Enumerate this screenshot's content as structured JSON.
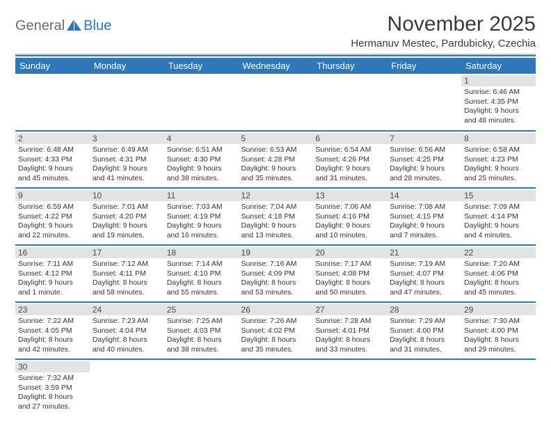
{
  "logo": {
    "text1": "General",
    "text2": "Blue"
  },
  "header": {
    "title": "November 2025",
    "subtitle": "Hermanuv Mestec, Pardubicky, Czechia"
  },
  "colors": {
    "accent": "#2e77b8",
    "header_text": "#ffffff",
    "daybar_bg": "#e3e3e3",
    "body_text": "#333333",
    "logo_gray": "#6c6c6c"
  },
  "weekdays": [
    "Sunday",
    "Monday",
    "Tuesday",
    "Wednesday",
    "Thursday",
    "Friday",
    "Saturday"
  ],
  "weeks": [
    [
      {
        "day": "",
        "sunrise": "",
        "sunset": "",
        "daylight1": "",
        "daylight2": ""
      },
      {
        "day": "",
        "sunrise": "",
        "sunset": "",
        "daylight1": "",
        "daylight2": ""
      },
      {
        "day": "",
        "sunrise": "",
        "sunset": "",
        "daylight1": "",
        "daylight2": ""
      },
      {
        "day": "",
        "sunrise": "",
        "sunset": "",
        "daylight1": "",
        "daylight2": ""
      },
      {
        "day": "",
        "sunrise": "",
        "sunset": "",
        "daylight1": "",
        "daylight2": ""
      },
      {
        "day": "",
        "sunrise": "",
        "sunset": "",
        "daylight1": "",
        "daylight2": ""
      },
      {
        "day": "1",
        "sunrise": "Sunrise: 6:46 AM",
        "sunset": "Sunset: 4:35 PM",
        "daylight1": "Daylight: 9 hours",
        "daylight2": "and 48 minutes."
      }
    ],
    [
      {
        "day": "2",
        "sunrise": "Sunrise: 6:48 AM",
        "sunset": "Sunset: 4:33 PM",
        "daylight1": "Daylight: 9 hours",
        "daylight2": "and 45 minutes."
      },
      {
        "day": "3",
        "sunrise": "Sunrise: 6:49 AM",
        "sunset": "Sunset: 4:31 PM",
        "daylight1": "Daylight: 9 hours",
        "daylight2": "and 41 minutes."
      },
      {
        "day": "4",
        "sunrise": "Sunrise: 6:51 AM",
        "sunset": "Sunset: 4:30 PM",
        "daylight1": "Daylight: 9 hours",
        "daylight2": "and 38 minutes."
      },
      {
        "day": "5",
        "sunrise": "Sunrise: 6:53 AM",
        "sunset": "Sunset: 4:28 PM",
        "daylight1": "Daylight: 9 hours",
        "daylight2": "and 35 minutes."
      },
      {
        "day": "6",
        "sunrise": "Sunrise: 6:54 AM",
        "sunset": "Sunset: 4:26 PM",
        "daylight1": "Daylight: 9 hours",
        "daylight2": "and 31 minutes."
      },
      {
        "day": "7",
        "sunrise": "Sunrise: 6:56 AM",
        "sunset": "Sunset: 4:25 PM",
        "daylight1": "Daylight: 9 hours",
        "daylight2": "and 28 minutes."
      },
      {
        "day": "8",
        "sunrise": "Sunrise: 6:58 AM",
        "sunset": "Sunset: 4:23 PM",
        "daylight1": "Daylight: 9 hours",
        "daylight2": "and 25 minutes."
      }
    ],
    [
      {
        "day": "9",
        "sunrise": "Sunrise: 6:59 AM",
        "sunset": "Sunset: 4:22 PM",
        "daylight1": "Daylight: 9 hours",
        "daylight2": "and 22 minutes."
      },
      {
        "day": "10",
        "sunrise": "Sunrise: 7:01 AM",
        "sunset": "Sunset: 4:20 PM",
        "daylight1": "Daylight: 9 hours",
        "daylight2": "and 19 minutes."
      },
      {
        "day": "11",
        "sunrise": "Sunrise: 7:03 AM",
        "sunset": "Sunset: 4:19 PM",
        "daylight1": "Daylight: 9 hours",
        "daylight2": "and 16 minutes."
      },
      {
        "day": "12",
        "sunrise": "Sunrise: 7:04 AM",
        "sunset": "Sunset: 4:18 PM",
        "daylight1": "Daylight: 9 hours",
        "daylight2": "and 13 minutes."
      },
      {
        "day": "13",
        "sunrise": "Sunrise: 7:06 AM",
        "sunset": "Sunset: 4:16 PM",
        "daylight1": "Daylight: 9 hours",
        "daylight2": "and 10 minutes."
      },
      {
        "day": "14",
        "sunrise": "Sunrise: 7:08 AM",
        "sunset": "Sunset: 4:15 PM",
        "daylight1": "Daylight: 9 hours",
        "daylight2": "and 7 minutes."
      },
      {
        "day": "15",
        "sunrise": "Sunrise: 7:09 AM",
        "sunset": "Sunset: 4:14 PM",
        "daylight1": "Daylight: 9 hours",
        "daylight2": "and 4 minutes."
      }
    ],
    [
      {
        "day": "16",
        "sunrise": "Sunrise: 7:11 AM",
        "sunset": "Sunset: 4:12 PM",
        "daylight1": "Daylight: 9 hours",
        "daylight2": "and 1 minute."
      },
      {
        "day": "17",
        "sunrise": "Sunrise: 7:12 AM",
        "sunset": "Sunset: 4:11 PM",
        "daylight1": "Daylight: 8 hours",
        "daylight2": "and 58 minutes."
      },
      {
        "day": "18",
        "sunrise": "Sunrise: 7:14 AM",
        "sunset": "Sunset: 4:10 PM",
        "daylight1": "Daylight: 8 hours",
        "daylight2": "and 55 minutes."
      },
      {
        "day": "19",
        "sunrise": "Sunrise: 7:16 AM",
        "sunset": "Sunset: 4:09 PM",
        "daylight1": "Daylight: 8 hours",
        "daylight2": "and 53 minutes."
      },
      {
        "day": "20",
        "sunrise": "Sunrise: 7:17 AM",
        "sunset": "Sunset: 4:08 PM",
        "daylight1": "Daylight: 8 hours",
        "daylight2": "and 50 minutes."
      },
      {
        "day": "21",
        "sunrise": "Sunrise: 7:19 AM",
        "sunset": "Sunset: 4:07 PM",
        "daylight1": "Daylight: 8 hours",
        "daylight2": "and 47 minutes."
      },
      {
        "day": "22",
        "sunrise": "Sunrise: 7:20 AM",
        "sunset": "Sunset: 4:06 PM",
        "daylight1": "Daylight: 8 hours",
        "daylight2": "and 45 minutes."
      }
    ],
    [
      {
        "day": "23",
        "sunrise": "Sunrise: 7:22 AM",
        "sunset": "Sunset: 4:05 PM",
        "daylight1": "Daylight: 8 hours",
        "daylight2": "and 42 minutes."
      },
      {
        "day": "24",
        "sunrise": "Sunrise: 7:23 AM",
        "sunset": "Sunset: 4:04 PM",
        "daylight1": "Daylight: 8 hours",
        "daylight2": "and 40 minutes."
      },
      {
        "day": "25",
        "sunrise": "Sunrise: 7:25 AM",
        "sunset": "Sunset: 4:03 PM",
        "daylight1": "Daylight: 8 hours",
        "daylight2": "and 38 minutes."
      },
      {
        "day": "26",
        "sunrise": "Sunrise: 7:26 AM",
        "sunset": "Sunset: 4:02 PM",
        "daylight1": "Daylight: 8 hours",
        "daylight2": "and 35 minutes."
      },
      {
        "day": "27",
        "sunrise": "Sunrise: 7:28 AM",
        "sunset": "Sunset: 4:01 PM",
        "daylight1": "Daylight: 8 hours",
        "daylight2": "and 33 minutes."
      },
      {
        "day": "28",
        "sunrise": "Sunrise: 7:29 AM",
        "sunset": "Sunset: 4:00 PM",
        "daylight1": "Daylight: 8 hours",
        "daylight2": "and 31 minutes."
      },
      {
        "day": "29",
        "sunrise": "Sunrise: 7:30 AM",
        "sunset": "Sunset: 4:00 PM",
        "daylight1": "Daylight: 8 hours",
        "daylight2": "and 29 minutes."
      }
    ],
    [
      {
        "day": "30",
        "sunrise": "Sunrise: 7:32 AM",
        "sunset": "Sunset: 3:59 PM",
        "daylight1": "Daylight: 8 hours",
        "daylight2": "and 27 minutes."
      },
      {
        "day": "",
        "sunrise": "",
        "sunset": "",
        "daylight1": "",
        "daylight2": ""
      },
      {
        "day": "",
        "sunrise": "",
        "sunset": "",
        "daylight1": "",
        "daylight2": ""
      },
      {
        "day": "",
        "sunrise": "",
        "sunset": "",
        "daylight1": "",
        "daylight2": ""
      },
      {
        "day": "",
        "sunrise": "",
        "sunset": "",
        "daylight1": "",
        "daylight2": ""
      },
      {
        "day": "",
        "sunrise": "",
        "sunset": "",
        "daylight1": "",
        "daylight2": ""
      },
      {
        "day": "",
        "sunrise": "",
        "sunset": "",
        "daylight1": "",
        "daylight2": ""
      }
    ]
  ]
}
